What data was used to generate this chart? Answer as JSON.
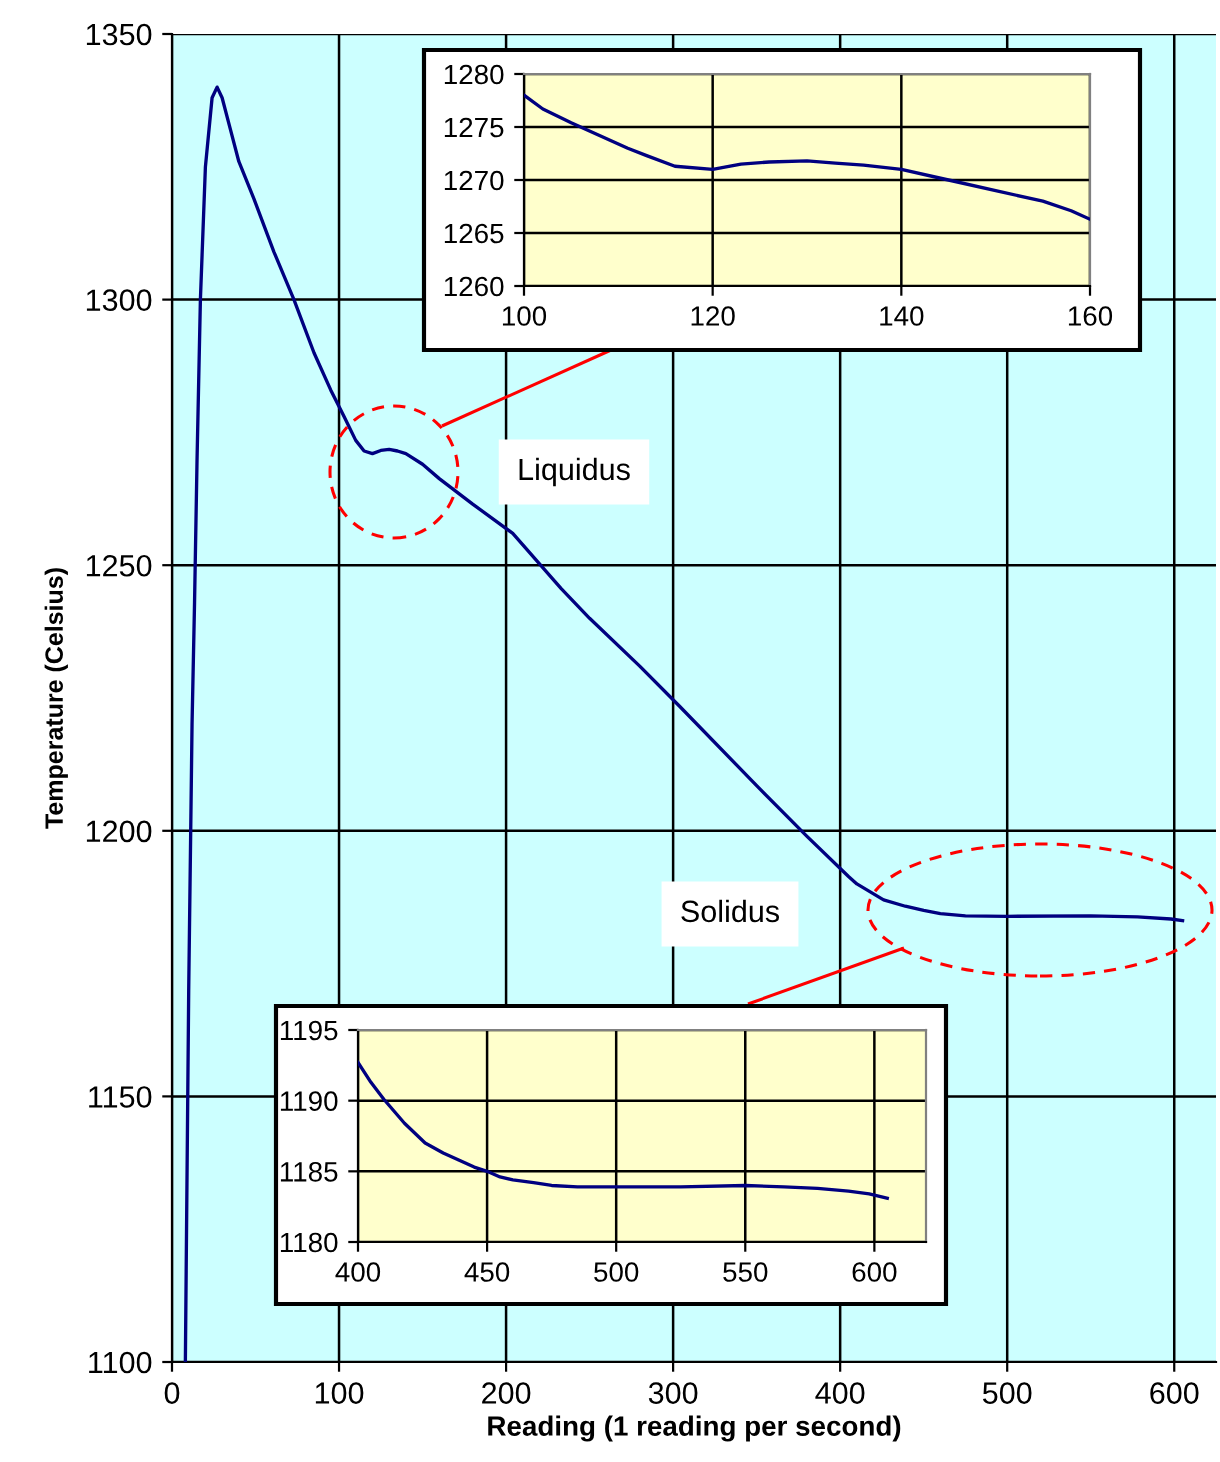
{
  "chart_data": [
    {
      "type": "line",
      "xlabel": "Reading (1 reading per second)",
      "ylabel": "Temperature (Celsius)",
      "color": "#000080",
      "x": [
        8,
        10,
        12,
        13.5,
        15,
        17,
        20,
        24,
        27,
        30,
        35,
        40,
        49,
        61,
        73,
        85,
        95,
        103,
        110,
        115,
        120,
        125,
        130,
        135,
        140,
        150,
        160,
        180,
        204,
        233,
        250,
        280,
        304,
        350,
        380,
        405,
        410,
        426,
        439,
        450,
        460,
        475,
        500,
        550,
        578,
        598,
        605
      ],
      "values": [
        1100,
        1170,
        1220,
        1243,
        1270,
        1300,
        1325,
        1338,
        1340,
        1338,
        1332,
        1326,
        1319,
        1309,
        1300,
        1290,
        1283,
        1278,
        1273.5,
        1271.5,
        1271,
        1271.6,
        1271.8,
        1271.5,
        1271,
        1269,
        1266.3,
        1261.5,
        1256,
        1245.6,
        1240,
        1231,
        1223.4,
        1208.5,
        1199,
        1191.4,
        1190,
        1187,
        1185.8,
        1185,
        1184.4,
        1184,
        1183.9,
        1184,
        1183.8,
        1183.4,
        1183.1
      ],
      "xlim": [
        0,
        625
      ],
      "ylim": [
        1100,
        1350
      ],
      "xticks": [
        0,
        100,
        200,
        300,
        400,
        500,
        600
      ],
      "yticks": [
        1100,
        1150,
        1200,
        1250,
        1300,
        1350
      ],
      "grid": true,
      "marker": "none",
      "line_style": "solid",
      "legend": false,
      "annotations": [
        "Liquidus",
        "Solidus"
      ]
    },
    {
      "type": "line",
      "color": "#000080",
      "x": [
        100,
        102,
        105,
        108,
        111,
        113,
        116,
        120,
        123,
        126,
        130,
        133,
        136,
        140,
        145,
        150,
        155,
        158,
        160
      ],
      "values": [
        1278,
        1276.7,
        1275.4,
        1274.2,
        1273,
        1272.3,
        1271.3,
        1271,
        1271.5,
        1271.7,
        1271.8,
        1271.6,
        1271.4,
        1271,
        1270,
        1269,
        1268,
        1267.1,
        1266.3
      ],
      "xlim": [
        100,
        160
      ],
      "ylim": [
        1260,
        1280
      ],
      "xticks": [
        100,
        120,
        140,
        160
      ],
      "yticks": [
        1260,
        1265,
        1270,
        1275,
        1280
      ],
      "grid": true,
      "marker": "none",
      "line_style": "solid",
      "legend": false
    },
    {
      "type": "line",
      "color": "#000080",
      "x": [
        400,
        405,
        410,
        418,
        426,
        433,
        439,
        445,
        450,
        455,
        460,
        468,
        475,
        485,
        500,
        525,
        550,
        565,
        578,
        590,
        598,
        605
      ],
      "values": [
        1192.7,
        1191.3,
        1190.1,
        1188.4,
        1187,
        1186.3,
        1185.8,
        1185.3,
        1185,
        1184.6,
        1184.4,
        1184.2,
        1184,
        1183.9,
        1183.9,
        1183.9,
        1184,
        1183.9,
        1183.8,
        1183.6,
        1183.4,
        1183.1
      ],
      "xlim": [
        400,
        620
      ],
      "ylim": [
        1180,
        1195
      ],
      "xticks": [
        400,
        450,
        500,
        550,
        600
      ],
      "yticks": [
        1180,
        1185,
        1190,
        1195
      ],
      "grid": true,
      "marker": "none",
      "line_style": "solid",
      "legend": false
    }
  ]
}
